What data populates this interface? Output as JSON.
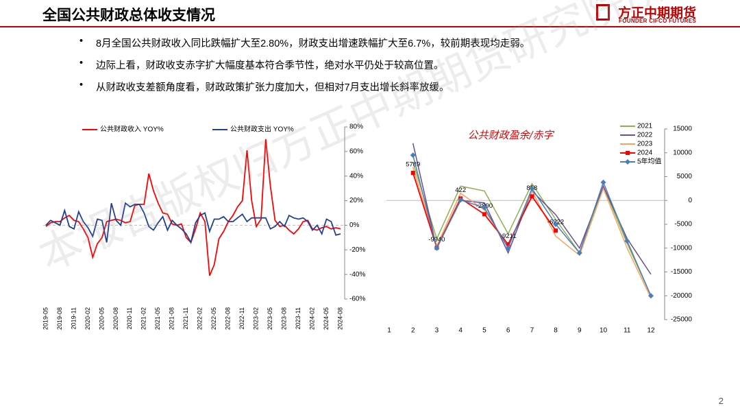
{
  "header": {
    "title": "全国公共财政总体收支情况",
    "logo": "方正中期期货",
    "logo_en": "FOUNDER CIFCO FUTURES"
  },
  "bullets": [
    "8月全国公共财政收入同比跌幅扩大至2.80%，财政支出增速跌幅扩大至6.7%，较前期表现均走弱。",
    "边际上看，财政收支赤字扩大幅度基本符合季节性，绝对水平仍处于较高位置。",
    "从财政收支差额角度看，财政政策扩张力度加大，但相对7月支出增长斜率放缓。"
  ],
  "watermark": "本报告版权归方正中期期货研究院所有",
  "page_number": "2",
  "chart_data": [
    {
      "type": "line",
      "legend": "top",
      "categories": [
        "2019-05",
        null,
        null,
        "2019-08",
        null,
        null,
        "2019-11",
        null,
        null,
        "2020-02",
        null,
        null,
        "2020-05",
        null,
        null,
        "2020-08",
        null,
        null,
        "2020-11",
        null,
        null,
        "2021-02",
        null,
        null,
        "2021-05",
        null,
        null,
        "2021-08",
        null,
        null,
        "2021-11",
        null,
        null,
        "2022-02",
        null,
        null,
        "2022-05",
        null,
        null,
        "2022-08",
        null,
        null,
        "2022-11",
        null,
        null,
        "2023-02",
        null,
        null,
        "2023-05",
        null,
        null,
        "2023-08",
        null,
        null,
        "2023-11",
        null,
        null,
        "2024-02",
        null,
        null,
        "2024-05",
        null,
        null,
        "2024-08"
      ],
      "series": [
        {
          "name": "公共财政收入 YOY%",
          "color": "#ff0000",
          "values": [
            -1,
            2,
            3,
            3,
            6,
            8,
            4,
            3,
            -3,
            -10,
            -26,
            -15,
            -10,
            3,
            4,
            5,
            4,
            2,
            3,
            16,
            17,
            17,
            42,
            28,
            18,
            10,
            9,
            1,
            0,
            1,
            -10,
            -14,
            -3,
            10,
            3,
            -41,
            -32,
            -11,
            -5,
            3,
            8,
            15,
            20,
            61,
            20,
            -1,
            5,
            70,
            32,
            4,
            -1,
            0,
            -4,
            -7,
            -3,
            3,
            4,
            -3,
            -4,
            -2,
            -1,
            -3,
            -2,
            -3
          ]
        },
        {
          "name": "公共财政支出 YOY%",
          "color": "#1f3f99",
          "values": [
            0,
            4,
            2,
            0,
            12,
            -1,
            -3,
            11,
            3,
            -2,
            -9,
            5,
            4,
            -14,
            18,
            4,
            0,
            18,
            15,
            17,
            17,
            10,
            -1,
            -4,
            2,
            7,
            -4,
            4,
            0,
            -3,
            -7,
            -14,
            2,
            8,
            10,
            -5,
            5,
            5,
            7,
            3,
            3,
            6,
            9,
            3,
            6,
            6,
            6,
            6,
            -3,
            -1,
            3,
            -1,
            8,
            6,
            5,
            6,
            3,
            -4,
            0,
            -7,
            5,
            3,
            -8,
            -7
          ]
        }
      ],
      "ylim": [
        -60,
        80
      ],
      "yticks": [
        {
          "value": -60,
          "label": "-60%"
        },
        {
          "value": -40,
          "label": "-40%"
        },
        {
          "value": -20,
          "label": "-20%"
        },
        {
          "value": 0,
          "label": "0%"
        },
        {
          "value": 20,
          "label": "20%"
        },
        {
          "value": 40,
          "label": "40%"
        },
        {
          "value": 60,
          "label": "60%"
        },
        {
          "value": 80,
          "label": "80%"
        }
      ]
    },
    {
      "type": "line",
      "title": "公共财政盈余/赤字",
      "legend": "upper right",
      "categories": [
        "1",
        "2",
        "3",
        "4",
        "5",
        "6",
        "7",
        "8",
        "9",
        "10",
        "11",
        "12"
      ],
      "series": [
        {
          "name": "2021",
          "color": "#8db04c",
          "values": [
            null,
            8000,
            -8000,
            3000,
            2000,
            -7000,
            3500,
            -4000,
            -11000,
            3000,
            -9000,
            -20000
          ]
        },
        {
          "name": "2022",
          "color": "#6a4c93",
          "values": [
            null,
            12000,
            -10000,
            0,
            -500,
            -11000,
            2000,
            -3000,
            -10000,
            3000,
            -8000,
            -15500
          ]
        },
        {
          "name": "2023",
          "color": "#f7a35c",
          "values": [
            null,
            7000,
            -9500,
            1500,
            -2000,
            -9500,
            2000,
            -7500,
            -11500,
            2500,
            -10000,
            -20500
          ]
        },
        {
          "name": "2024",
          "color": "#ff0000",
          "marker": "square",
          "data_labels": true,
          "values": [
            null,
            5789,
            -9940,
            422,
            -2890,
            -9211,
            858,
            -6322,
            null,
            null,
            null,
            null
          ]
        },
        {
          "name": "5年均值",
          "color": "#4a7ebb",
          "marker": "diamond",
          "values": [
            null,
            9500,
            -10000,
            100,
            -1500,
            -10000,
            2500,
            -5000,
            -11000,
            3800,
            -8500,
            -20000
          ]
        }
      ],
      "ylim": [
        -25000,
        15000
      ],
      "yticks": [
        -25000,
        -20000,
        -15000,
        -10000,
        -5000,
        0,
        5000,
        10000,
        15000
      ]
    }
  ]
}
